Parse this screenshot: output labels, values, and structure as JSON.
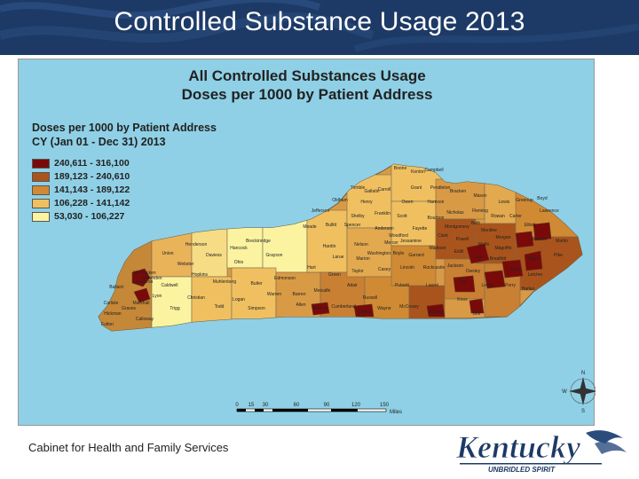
{
  "slide": {
    "title": "Controlled Substance Usage 2013",
    "footer": "Cabinet for Health and Family Services"
  },
  "map": {
    "title_line1": "All Controlled Substances Usage",
    "title_line2": "Doses per 1000 by Patient Address",
    "legend_title_line1": "Doses per 1000 by Patient Address",
    "legend_title_line2": "CY (Jan 01 - Dec 31) 2013",
    "legend": [
      {
        "label": "240,611 - 316,100",
        "color": "#7a0a0a"
      },
      {
        "label": "189,123 - 240,610",
        "color": "#a9541c"
      },
      {
        "label": "141,143 - 189,122",
        "color": "#d08a33"
      },
      {
        "label": "106,228 - 141,142",
        "color": "#f0c060"
      },
      {
        "label": "53,030 - 106,227",
        "color": "#fbf3a0"
      }
    ],
    "scale": {
      "ticks": [
        "0",
        "15",
        "30",
        "60",
        "90",
        "120",
        "150"
      ],
      "unit": "Miles"
    },
    "compass": {
      "n": "N",
      "s": "S",
      "e": "E",
      "w": "W"
    },
    "counties": [
      "Boone",
      "Kenton",
      "Campbell",
      "Gallatin",
      "Grant",
      "Pendleton",
      "Trimble",
      "Carroll",
      "Owen",
      "Harrison",
      "Bracken",
      "Mason",
      "Lewis",
      "Greenup",
      "Boyd",
      "Henry",
      "Scott",
      "Nicholas",
      "Fleming",
      "Carter",
      "Lawrence",
      "Oldham",
      "Shelby",
      "Franklin",
      "Bourbon",
      "Bath",
      "Rowan",
      "Elliott",
      "Jefferson",
      "Anderson",
      "Woodford",
      "Fayette",
      "Montgomery",
      "Menifee",
      "Morgan",
      "Johnson",
      "Martin",
      "Bullitt",
      "Spencer",
      "Mercer",
      "Jessamine",
      "Clark",
      "Powell",
      "Wolfe",
      "Magoffin",
      "Floyd",
      "Pike",
      "Meade",
      "Hardin",
      "Nelson",
      "Washington",
      "Boyle",
      "Garrard",
      "Madison",
      "Estill",
      "Lee",
      "Breathitt",
      "Knott",
      "Letcher",
      "Breckinridge",
      "Grayson",
      "Larue",
      "Marion",
      "Lincoln",
      "Rockcastle",
      "Jackson",
      "Owsley",
      "Perry",
      "Harlan",
      "Hancock",
      "Ohio",
      "Hart",
      "Green",
      "Taylor",
      "Casey",
      "Pulaski",
      "Laurel",
      "Clay",
      "Leslie",
      "Knox",
      "Bell",
      "Whitley",
      "McCracken",
      "Ballard",
      "Livingston",
      "Crittenden",
      "Union",
      "Henderson",
      "Daviess",
      "Webster",
      "Hopkins",
      "Muhlenberg",
      "Butler",
      "Edmonson",
      "Barren",
      "Metcalfe",
      "Adair",
      "Russell",
      "Wayne",
      "McCreary",
      "Cumberland",
      "Clinton",
      "Monroe",
      "Allen",
      "Warren",
      "Simpson",
      "Logan",
      "Todd",
      "Christian",
      "Trigg",
      "Lyon",
      "Caldwell",
      "Marshall",
      "Calloway",
      "Graves",
      "Carlisle",
      "Hickman",
      "Fulton"
    ]
  }
}
